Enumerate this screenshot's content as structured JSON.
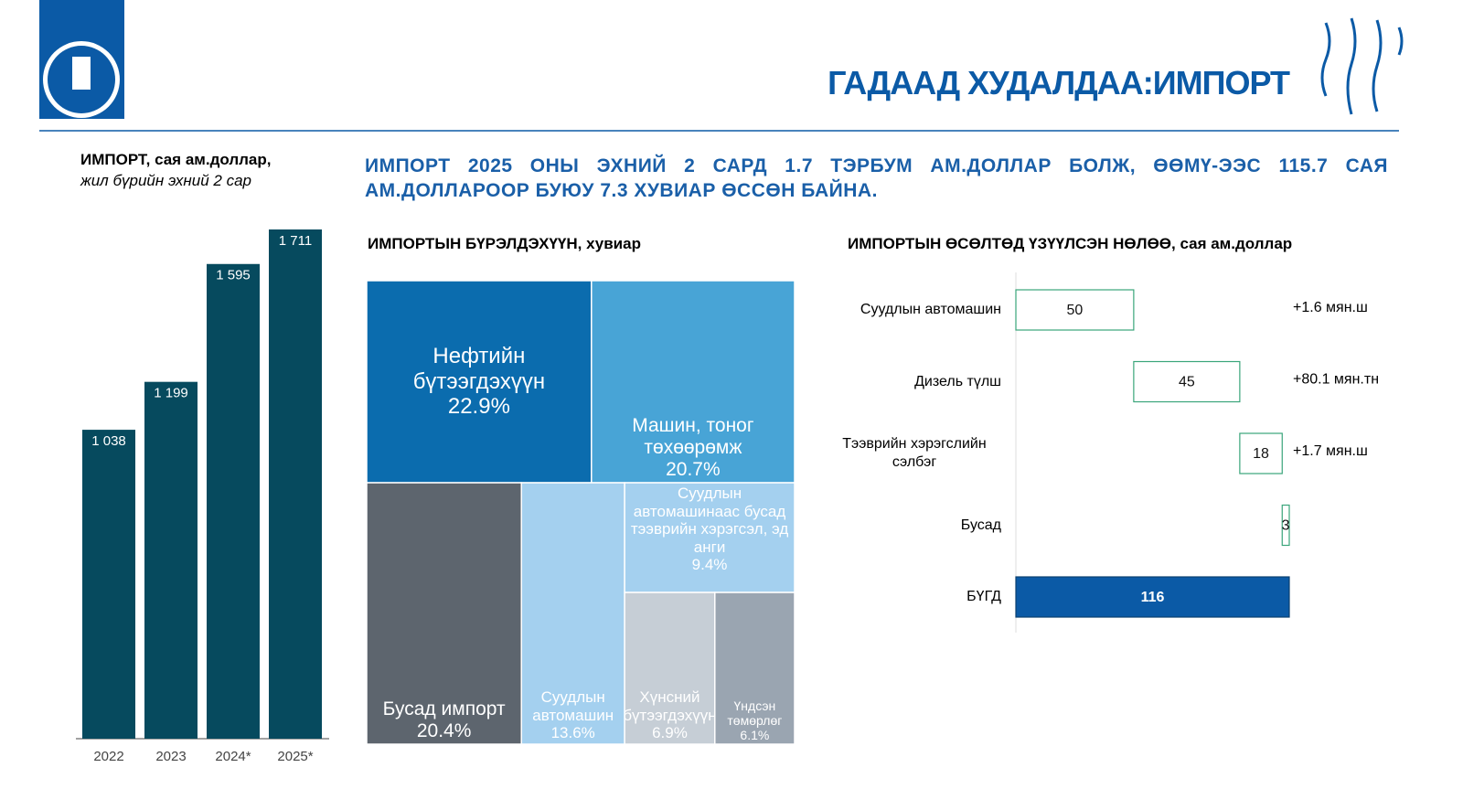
{
  "header": {
    "title": "ГАДААД ХУДАЛДАА:ИМПОРТ"
  },
  "headline": "ИМПОРТ 2025 ОНЫ ЭХНИЙ 2 САРД 1.7 ТЭРБУМ АМ.ДОЛЛАР БОЛЖ, ӨӨМҮ-ЭЭС 115.7 САЯ АМ.ДОЛЛАРООР БУЮУ 7.3 ХУВИАР ӨССӨН БАЙНА.",
  "chart_data": [
    {
      "type": "bar",
      "title": "ИМПОРТ, сая ам.доллар,",
      "subtitle": "жил бүрийн эхний 2 сар",
      "categories": [
        "2022",
        "2023",
        "2024*",
        "2025*"
      ],
      "values": [
        1038,
        1199,
        1595,
        1711
      ],
      "value_labels": [
        "1 038",
        "1 199",
        "1 595",
        "1 711"
      ],
      "color": "#064a5e"
    },
    {
      "type": "treemap",
      "title": "ИМПОРТЫН БҮРЭЛДЭХҮҮН, хувиар",
      "categories": [
        "Нефтийн бүтээгдэхүүн",
        "Машин, тоног төхөөрөмж",
        "Бусад импорт",
        "Суудлын автомашин",
        "Суудлын автомашинаас бусад тээврийн хэрэгсэл, эд анги",
        "Хүнсний бүтээгдэхүүн",
        "Үндсэн төмөрлөг"
      ],
      "values": [
        22.9,
        20.7,
        20.4,
        13.6,
        9.4,
        6.9,
        6.1
      ],
      "value_labels": [
        "22.9%",
        "20.7%",
        "20.4%",
        "13.6%",
        "9.4%",
        "6.9%",
        "6.1%"
      ],
      "colors": [
        "#0b6cae",
        "#48a4d6",
        "#5d656e",
        "#a4d0ef",
        "#a4d0ef",
        "#c6ced6",
        "#9aa5b1"
      ]
    },
    {
      "type": "waterfall",
      "title": "ИМПОРТЫН ӨСӨЛТӨД ҮЗҮҮЛСЭН НӨЛӨӨ, сая ам.доллар",
      "categories": [
        "Суудлын автомашин",
        "Дизель түлш",
        "Тээврийн хэрэгслийн сэлбэг",
        "Бусад",
        "БҮГД"
      ],
      "values": [
        50,
        45,
        18,
        3,
        116
      ],
      "annotations": [
        "+1.6 мян.ш",
        "+80.1 мян.тн",
        "+1.7 мян.ш",
        null,
        null
      ],
      "color": "#3aa57a",
      "total_color": "#0b5aa6"
    }
  ]
}
